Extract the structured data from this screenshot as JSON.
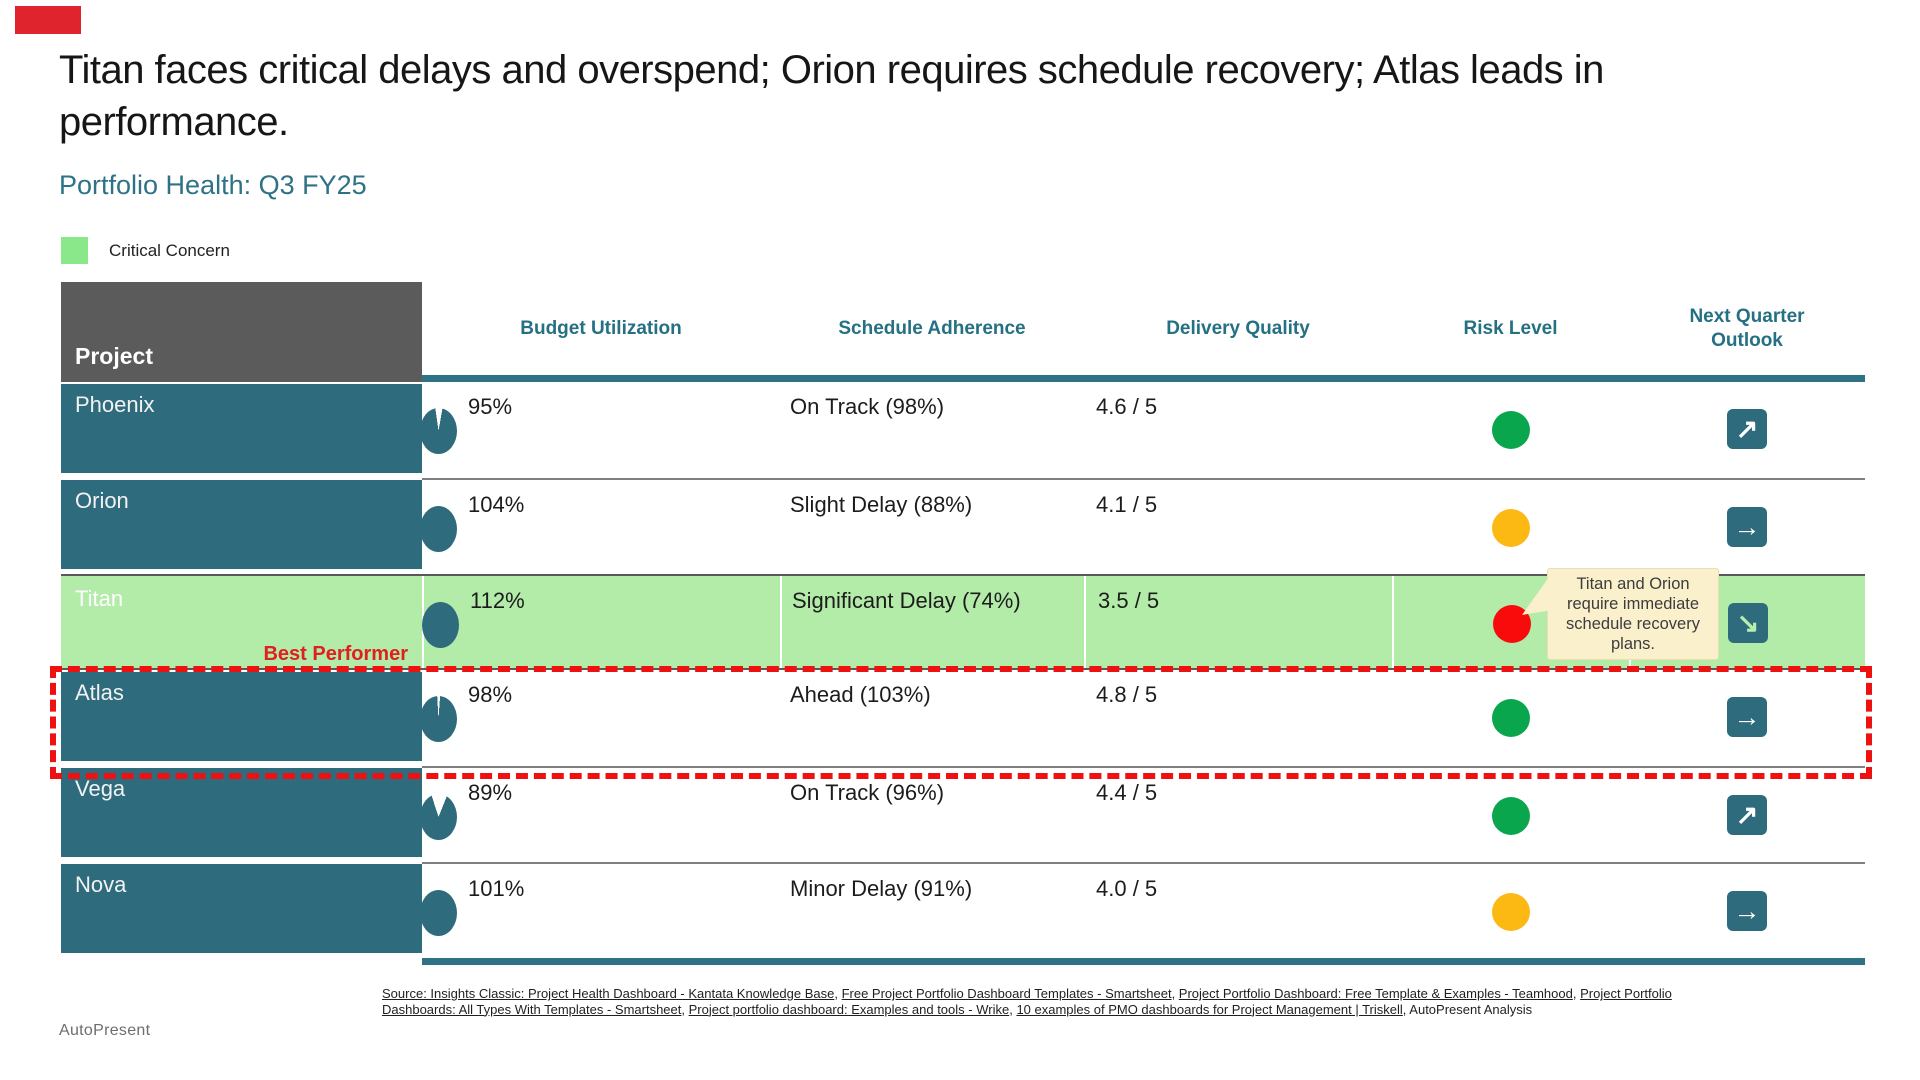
{
  "theme": {
    "teal": "#2e7286",
    "pie_fill": "#2d6b7d",
    "pie_empty": "#ffffff",
    "project_cell": "#2d6b7d",
    "highlight_green": "#b3eba8",
    "accent_red": "#e0242e",
    "dashed_red": "#ed1111",
    "risk_green": "#0aa64e",
    "risk_amber": "#fdb913",
    "risk_red": "#f90b0b"
  },
  "slide": {
    "accent_bar_color": "#e0242e",
    "title": "Titan faces critical delays and overspend; Orion requires schedule recovery; Atlas leads in performance.",
    "subtitle": "Portfolio Health: Q3 FY25",
    "legend": {
      "label": "Critical Concern",
      "swatch_color": "#8ae88b"
    },
    "footer_brand": "AutoPresent"
  },
  "table": {
    "columns": [
      "Project",
      "Budget Utilization",
      "Schedule Adherence",
      "Delivery Quality",
      "Risk Level",
      "Next Quarter Outlook"
    ],
    "rows": [
      {
        "project": "Phoenix",
        "utilization_pct": 95,
        "budget_label": "95%",
        "schedule": "On Track (98%)",
        "quality": "4.6 / 5",
        "risk": "green",
        "risk_color": "#0aa64e",
        "outlook_dir": "up-right",
        "outlook_glyph": "↗",
        "outlook_box_color": "#2d6b7d",
        "arrow_color": "#ffffff"
      },
      {
        "project": "Orion",
        "utilization_pct": 104,
        "budget_label": "104%",
        "schedule": "Slight Delay (88%)",
        "quality": "4.1 / 5",
        "risk": "amber",
        "risk_color": "#fdb913",
        "outlook_dir": "right",
        "outlook_glyph": "→",
        "outlook_box_color": "#2d6b7d",
        "arrow_color": "#ffffff"
      },
      {
        "project": "Titan",
        "utilization_pct": 112,
        "budget_label": "112%",
        "schedule": "Significant Delay (74%)",
        "quality": "3.5 / 5",
        "risk": "red",
        "risk_color": "#f90b0b",
        "outlook_dir": "down-right",
        "outlook_glyph": "↘",
        "outlook_box_color": "#2d6b7d",
        "arrow_color": "#b7edad"
      },
      {
        "project": "Atlas",
        "utilization_pct": 98,
        "budget_label": "98%",
        "schedule": "Ahead (103%)",
        "quality": "4.8 / 5",
        "risk": "green",
        "risk_color": "#0aa64e",
        "outlook_dir": "right",
        "outlook_glyph": "→",
        "outlook_box_color": "#2d6b7d",
        "arrow_color": "#ffffff"
      },
      {
        "project": "Vega",
        "utilization_pct": 89,
        "budget_label": "89%",
        "schedule": "On Track (96%)",
        "quality": "4.4 / 5",
        "risk": "green",
        "risk_color": "#0aa64e",
        "outlook_dir": "up-right",
        "outlook_glyph": "↗",
        "outlook_box_color": "#2d6b7d",
        "arrow_color": "#ffffff"
      },
      {
        "project": "Nova",
        "utilization_pct": 101,
        "budget_label": "101%",
        "schedule": "Minor Delay (91%)",
        "quality": "4.0 / 5",
        "risk": "amber",
        "risk_color": "#fdb913",
        "outlook_dir": "right",
        "outlook_glyph": "→",
        "outlook_box_color": "#2d6b7d",
        "arrow_color": "#ffffff"
      }
    ]
  },
  "annotations": {
    "best_performer_label": "Best Performer"
  },
  "tooltip": {
    "text": "Titan and Orion require immediate schedule recovery plans."
  },
  "sources": {
    "segments": [
      {
        "text": "Source: Insights Classic: Project Health Dashboard - Kantata Knowledge Base",
        "link": true
      },
      {
        "text": ", ",
        "link": false
      },
      {
        "text": "Free Project Portfolio Dashboard Templates - Smartsheet",
        "link": true
      },
      {
        "text": ", ",
        "link": false
      },
      {
        "text": "Project Portfolio Dashboard: Free Template & Examples - Teamhood",
        "link": true
      },
      {
        "text": ", ",
        "link": false
      },
      {
        "text": "Project Portfolio Dashboards: All Types With Templates - Smartsheet",
        "link": true
      },
      {
        "text": ", ",
        "link": false
      },
      {
        "text": "Project portfolio dashboard: Examples and tools - Wrike",
        "link": true
      },
      {
        "text": ", ",
        "link": false
      },
      {
        "text": "10 examples of PMO dashboards for Project Management | Triskell",
        "link": true
      },
      {
        "text": ", AutoPresent Analysis",
        "link": false
      }
    ]
  },
  "chart_data": {
    "type": "table",
    "title": "Portfolio Health: Q3 FY25",
    "columns": [
      "Project",
      "Budget Utilization",
      "Schedule Adherence",
      "Delivery Quality",
      "Risk Level",
      "Next Quarter Outlook"
    ],
    "rows": [
      [
        "Phoenix",
        "95%",
        "On Track (98%)",
        "4.6 / 5",
        "green",
        "up-right"
      ],
      [
        "Orion",
        "104%",
        "Slight Delay (88%)",
        "4.1 / 5",
        "amber",
        "right"
      ],
      [
        "Titan",
        "112%",
        "Significant Delay (74%)",
        "3.5 / 5",
        "red",
        "down-right"
      ],
      [
        "Atlas",
        "98%",
        "Ahead (103%)",
        "4.8 / 5",
        "green",
        "right"
      ],
      [
        "Vega",
        "89%",
        "On Track (96%)",
        "4.4 / 5",
        "green",
        "up-right"
      ],
      [
        "Nova",
        "101%",
        "Minor Delay (91%)",
        "4.0 / 5",
        "amber",
        "right"
      ]
    ],
    "highlighted_row": "Titan",
    "outlined_row": "Atlas"
  }
}
